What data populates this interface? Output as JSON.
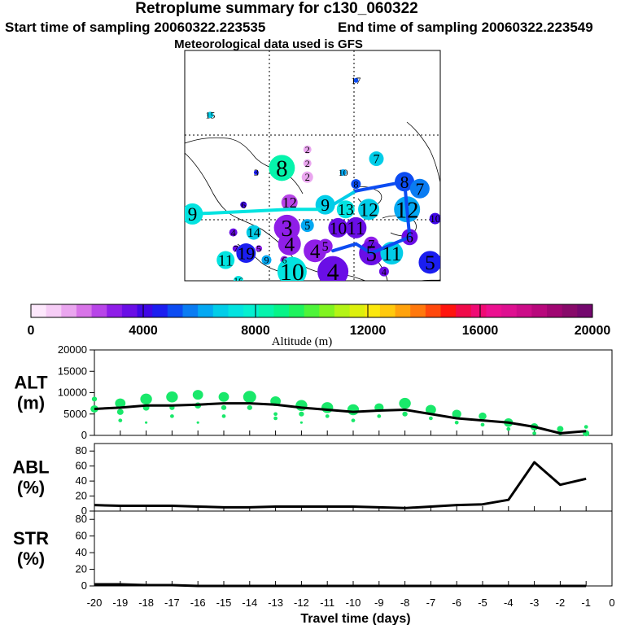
{
  "header": {
    "title": "Retroplume summary for c130_060322",
    "start_label": "Start time of sampling 20060322.223535",
    "end_label": "End time of sampling 20060322.223549",
    "met_label": "Meteorological data used is GFS"
  },
  "map": {
    "markers": [
      {
        "label": "17",
        "lon": 0.67,
        "lat": 0.13,
        "alt": 5000,
        "size": 3
      },
      {
        "label": "15",
        "lon": 0.1,
        "lat": 0.28,
        "alt": 7000,
        "size": 4
      },
      {
        "label": "8",
        "lon": 0.38,
        "lat": 0.51,
        "alt": 8500,
        "size": 16
      },
      {
        "label": "2",
        "lon": 0.48,
        "lat": 0.43,
        "alt": 1500,
        "size": 5
      },
      {
        "label": "2",
        "lon": 0.48,
        "lat": 0.49,
        "alt": 1500,
        "size": 5
      },
      {
        "label": "3",
        "lon": 0.28,
        "lat": 0.53,
        "alt": 4500,
        "size": 3
      },
      {
        "label": "10",
        "lon": 0.62,
        "lat": 0.53,
        "alt": 6000,
        "size": 4
      },
      {
        "label": "7",
        "lon": 0.75,
        "lat": 0.47,
        "alt": 7000,
        "size": 9
      },
      {
        "label": "2",
        "lon": 0.48,
        "lat": 0.55,
        "alt": 1500,
        "size": 7
      },
      {
        "label": "8",
        "lon": 0.67,
        "lat": 0.58,
        "alt": 5000,
        "size": 6
      },
      {
        "label": "8",
        "lon": 0.86,
        "lat": 0.57,
        "alt": 5000,
        "size": 12
      },
      {
        "label": "7",
        "lon": 0.92,
        "lat": 0.6,
        "alt": 5500,
        "size": 12
      },
      {
        "label": "9",
        "lon": 0.03,
        "lat": 0.71,
        "alt": 7500,
        "size": 13
      },
      {
        "label": "6",
        "lon": 0.23,
        "lat": 0.67,
        "alt": 4000,
        "size": 4
      },
      {
        "label": "12",
        "lon": 0.41,
        "lat": 0.66,
        "alt": 2500,
        "size": 10
      },
      {
        "label": "9",
        "lon": 0.55,
        "lat": 0.67,
        "alt": 7000,
        "size": 12
      },
      {
        "label": "13",
        "lon": 0.63,
        "lat": 0.69,
        "alt": 7500,
        "size": 11
      },
      {
        "label": "12",
        "lon": 0.72,
        "lat": 0.69,
        "alt": 7000,
        "size": 13
      },
      {
        "label": "12",
        "lon": 0.87,
        "lat": 0.69,
        "alt": 6000,
        "size": 16
      },
      {
        "label": "10",
        "lon": 0.98,
        "lat": 0.73,
        "alt": 4200,
        "size": 7
      },
      {
        "label": "3",
        "lon": 0.4,
        "lat": 0.77,
        "alt": 3000,
        "size": 16
      },
      {
        "label": "4",
        "lon": 0.19,
        "lat": 0.79,
        "alt": 3500,
        "size": 5
      },
      {
        "label": "14",
        "lon": 0.27,
        "lat": 0.79,
        "alt": 7000,
        "size": 9
      },
      {
        "label": "5",
        "lon": 0.48,
        "lat": 0.76,
        "alt": 6000,
        "size": 8
      },
      {
        "label": "10",
        "lon": 0.6,
        "lat": 0.77,
        "alt": 3500,
        "size": 12
      },
      {
        "label": "11",
        "lon": 0.67,
        "lat": 0.77,
        "alt": 3500,
        "size": 13
      },
      {
        "label": "6",
        "lon": 0.88,
        "lat": 0.81,
        "alt": 3500,
        "size": 10
      },
      {
        "label": "4",
        "lon": 0.41,
        "lat": 0.84,
        "alt": 3000,
        "size": 14
      },
      {
        "label": "4",
        "lon": 0.51,
        "lat": 0.87,
        "alt": 3000,
        "size": 14
      },
      {
        "label": "5",
        "lon": 0.55,
        "lat": 0.85,
        "alt": 3000,
        "size": 9
      },
      {
        "label": "7",
        "lon": 0.2,
        "lat": 0.86,
        "alt": 3500,
        "size": 4
      },
      {
        "label": "19",
        "lon": 0.24,
        "lat": 0.88,
        "alt": 4500,
        "size": 12
      },
      {
        "label": "5",
        "lon": 0.29,
        "lat": 0.86,
        "alt": 3000,
        "size": 4
      },
      {
        "label": "11",
        "lon": 0.16,
        "lat": 0.91,
        "alt": 7500,
        "size": 11
      },
      {
        "label": "9",
        "lon": 0.32,
        "lat": 0.91,
        "alt": 6000,
        "size": 6
      },
      {
        "label": "6",
        "lon": 0.39,
        "lat": 0.91,
        "alt": 3000,
        "size": 5
      },
      {
        "label": "7",
        "lon": 0.73,
        "lat": 0.84,
        "alt": 3000,
        "size": 9
      },
      {
        "label": "5",
        "lon": 0.73,
        "lat": 0.88,
        "alt": 3500,
        "size": 15
      },
      {
        "label": "11",
        "lon": 0.81,
        "lat": 0.88,
        "alt": 6500,
        "size": 14
      },
      {
        "label": "5",
        "lon": 0.96,
        "lat": 0.92,
        "alt": 4500,
        "size": 14
      },
      {
        "label": "10",
        "lon": 0.42,
        "lat": 0.96,
        "alt": 7500,
        "size": 18
      },
      {
        "label": "4",
        "lon": 0.58,
        "lat": 0.96,
        "alt": 3500,
        "size": 19
      },
      {
        "label": "16",
        "lon": 0.21,
        "lat": 1.0,
        "alt": 7500,
        "size": 6
      },
      {
        "label": "4",
        "lon": 0.78,
        "lat": 0.96,
        "alt": 3500,
        "size": 6
      }
    ],
    "mean_path": {
      "lon": [
        0.03,
        0.41,
        0.55,
        0.67,
        0.86,
        0.88,
        0.73,
        0.67,
        0.58
      ],
      "lat": [
        0.71,
        0.69,
        0.69,
        0.61,
        0.57,
        0.81,
        0.88,
        0.84,
        0.87
      ],
      "alt": [
        7500,
        7500,
        7000,
        5000,
        5000,
        5000,
        5000,
        5000,
        5000
      ]
    }
  },
  "colorbar": {
    "xlabel": "Altitude (m)",
    "ticks": [
      "0",
      "4000",
      "8000",
      "12000",
      "16000",
      "20000"
    ],
    "colors": [
      "#fde8fc",
      "#f6cdf6",
      "#eaa6ef",
      "#d874e8",
      "#b845e8",
      "#8f1ee8",
      "#6a0ee6",
      "#3f07e6",
      "#1b1ef0",
      "#0c4cf2",
      "#0a7cf2",
      "#04a8f2",
      "#02cde8",
      "#03e3e0",
      "#04f0d0",
      "#05f4ac",
      "#07f488",
      "#1ef35e",
      "#4ef43a",
      "#80f421",
      "#b4f416",
      "#dcf00c",
      "#fbe80c",
      "#ffc90c",
      "#ffa20c",
      "#ff780c",
      "#ff480c",
      "#ff140e",
      "#f00a4a",
      "#f00a74",
      "#ec1090",
      "#de1090",
      "#cc0c88",
      "#b8087c",
      "#a00672",
      "#880a6a",
      "#74086e"
    ]
  },
  "chart_data": [
    {
      "type": "line",
      "name": "ALT",
      "ylabel": "ALT (m)",
      "ylabel_lines": [
        "ALT",
        "(m)"
      ],
      "ylim": [
        0,
        20000
      ],
      "yticks": [
        "0",
        "5000",
        "10000",
        "15000",
        "20000"
      ],
      "yticks_values": [
        0,
        5000,
        10000,
        15000,
        20000
      ],
      "x": [
        -20,
        -19,
        -18,
        -17,
        -16,
        -15,
        -14,
        -13,
        -12,
        -11,
        -10,
        -9,
        -8,
        -7,
        -6,
        -5,
        -4,
        -3,
        -2,
        -1
      ],
      "values": [
        6200,
        6500,
        7000,
        7000,
        7200,
        7500,
        7500,
        7200,
        6500,
        6000,
        5500,
        5800,
        6000,
        5000,
        4000,
        3500,
        3000,
        2000,
        500,
        1000
      ],
      "scatter": [
        {
          "x": -20,
          "y": 8500,
          "s": 4
        },
        {
          "x": -20,
          "y": 6200,
          "s": 6
        },
        {
          "x": -19,
          "y": 7500,
          "s": 8
        },
        {
          "x": -19,
          "y": 5500,
          "s": 5
        },
        {
          "x": -19,
          "y": 3500,
          "s": 3
        },
        {
          "x": -18,
          "y": 8500,
          "s": 9
        },
        {
          "x": -18,
          "y": 6500,
          "s": 5
        },
        {
          "x": -18,
          "y": 3000,
          "s": 2
        },
        {
          "x": -17,
          "y": 9000,
          "s": 9
        },
        {
          "x": -17,
          "y": 6500,
          "s": 4
        },
        {
          "x": -17,
          "y": 4500,
          "s": 3
        },
        {
          "x": -16,
          "y": 9500,
          "s": 8
        },
        {
          "x": -16,
          "y": 7000,
          "s": 5
        },
        {
          "x": -16,
          "y": 3000,
          "s": 2
        },
        {
          "x": -15,
          "y": 9000,
          "s": 8
        },
        {
          "x": -15,
          "y": 6500,
          "s": 4
        },
        {
          "x": -15,
          "y": 4500,
          "s": 3
        },
        {
          "x": -14,
          "y": 9000,
          "s": 10
        },
        {
          "x": -14,
          "y": 6500,
          "s": 4
        },
        {
          "x": -13,
          "y": 8000,
          "s": 8
        },
        {
          "x": -13,
          "y": 5000,
          "s": 3
        },
        {
          "x": -13,
          "y": 4000,
          "s": 3
        },
        {
          "x": -12,
          "y": 7000,
          "s": 9
        },
        {
          "x": -12,
          "y": 5000,
          "s": 4
        },
        {
          "x": -12,
          "y": 3000,
          "s": 2
        },
        {
          "x": -11,
          "y": 6500,
          "s": 9
        },
        {
          "x": -11,
          "y": 4500,
          "s": 3
        },
        {
          "x": -10,
          "y": 6000,
          "s": 9
        },
        {
          "x": -10,
          "y": 3500,
          "s": 3
        },
        {
          "x": -9,
          "y": 6500,
          "s": 7
        },
        {
          "x": -9,
          "y": 4500,
          "s": 3
        },
        {
          "x": -8,
          "y": 7500,
          "s": 9
        },
        {
          "x": -8,
          "y": 5000,
          "s": 4
        },
        {
          "x": -7,
          "y": 6000,
          "s": 8
        },
        {
          "x": -7,
          "y": 4000,
          "s": 3
        },
        {
          "x": -6,
          "y": 5000,
          "s": 7
        },
        {
          "x": -6,
          "y": 3000,
          "s": 3
        },
        {
          "x": -5,
          "y": 4500,
          "s": 6
        },
        {
          "x": -5,
          "y": 2500,
          "s": 3
        },
        {
          "x": -4,
          "y": 3000,
          "s": 7
        },
        {
          "x": -4,
          "y": 1500,
          "s": 3
        },
        {
          "x": -3,
          "y": 2000,
          "s": 6
        },
        {
          "x": -3,
          "y": 500,
          "s": 3
        },
        {
          "x": -2,
          "y": 1500,
          "s": 5
        },
        {
          "x": -2,
          "y": 500,
          "s": 3
        },
        {
          "x": -1,
          "y": 2000,
          "s": 3
        },
        {
          "x": -1,
          "y": 500,
          "s": 5
        }
      ]
    },
    {
      "type": "line",
      "name": "ABL",
      "ylabel": "ABL (%)",
      "ylabel_lines": [
        "ABL",
        "(%)"
      ],
      "ylim": [
        0,
        90
      ],
      "yticks": [
        "0",
        "20",
        "40",
        "60",
        "80"
      ],
      "yticks_values": [
        0,
        20,
        40,
        60,
        80
      ],
      "x": [
        -20,
        -19,
        -18,
        -17,
        -16,
        -15,
        -14,
        -13,
        -12,
        -11,
        -10,
        -9,
        -8,
        -7,
        -6,
        -5,
        -4,
        -3,
        -2,
        -1
      ],
      "values": [
        8,
        7,
        7,
        7,
        6,
        5,
        5,
        6,
        6,
        6,
        6,
        5,
        4,
        6,
        8,
        9,
        15,
        65,
        35,
        43
      ]
    },
    {
      "type": "line",
      "name": "STR",
      "ylabel": "STR (%)",
      "ylabel_lines": [
        "STR",
        "(%)"
      ],
      "ylim": [
        0,
        90
      ],
      "yticks": [
        "0",
        "20",
        "40",
        "60",
        "80"
      ],
      "yticks_values": [
        0,
        20,
        40,
        60,
        80
      ],
      "x": [
        -20,
        -19,
        -18,
        -17,
        -16,
        -15,
        -14,
        -13,
        -12,
        -11,
        -10,
        -9,
        -8,
        -7,
        -6,
        -5,
        -4,
        -3,
        -2,
        -1
      ],
      "values": [
        2,
        2,
        1,
        1,
        0,
        0,
        0,
        0,
        0,
        0,
        0,
        0,
        0,
        0,
        0,
        0,
        0,
        0,
        0,
        0
      ]
    }
  ],
  "xaxis": {
    "xlabel": "Travel time (days)",
    "xlim": [
      -20,
      0
    ],
    "ticks": [
      "-20",
      "-19",
      "-18",
      "-17",
      "-16",
      "-15",
      "-14",
      "-13",
      "-12",
      "-11",
      "-10",
      "-9",
      "-8",
      "-7",
      "-6",
      "-5",
      "-4",
      "-3",
      "-2",
      "-1",
      "0"
    ],
    "ticks_values": [
      -20,
      -19,
      -18,
      -17,
      -16,
      -15,
      -14,
      -13,
      -12,
      -11,
      -10,
      -9,
      -8,
      -7,
      -6,
      -5,
      -4,
      -3,
      -2,
      -1,
      0
    ]
  }
}
